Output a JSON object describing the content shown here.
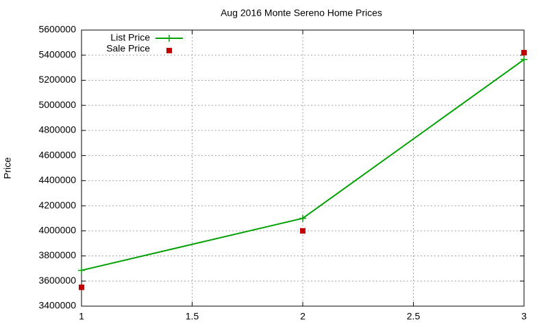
{
  "chart_data": {
    "type": "line",
    "title": "Aug 2016 Monte Sereno Home Prices",
    "y_label": "Price",
    "x": [
      1,
      2,
      3
    ],
    "series": [
      {
        "name": "List Price",
        "color": "#00a000",
        "style": "linespoints",
        "values": [
          3685000,
          4100000,
          5365000
        ]
      },
      {
        "name": "Sale Price",
        "color": "#c00000",
        "style": "points",
        "values": [
          3550000,
          4000000,
          5420000
        ]
      }
    ],
    "xlim": [
      1,
      3
    ],
    "xticks": [
      1,
      1.5,
      2,
      2.5,
      3
    ],
    "ylim": [
      3400000,
      5600000
    ],
    "yticks": [
      3400000,
      3600000,
      3800000,
      4000000,
      4200000,
      4400000,
      4600000,
      4800000,
      5000000,
      5200000,
      5400000,
      5600000
    ],
    "grid": true,
    "legend": "top-left"
  }
}
